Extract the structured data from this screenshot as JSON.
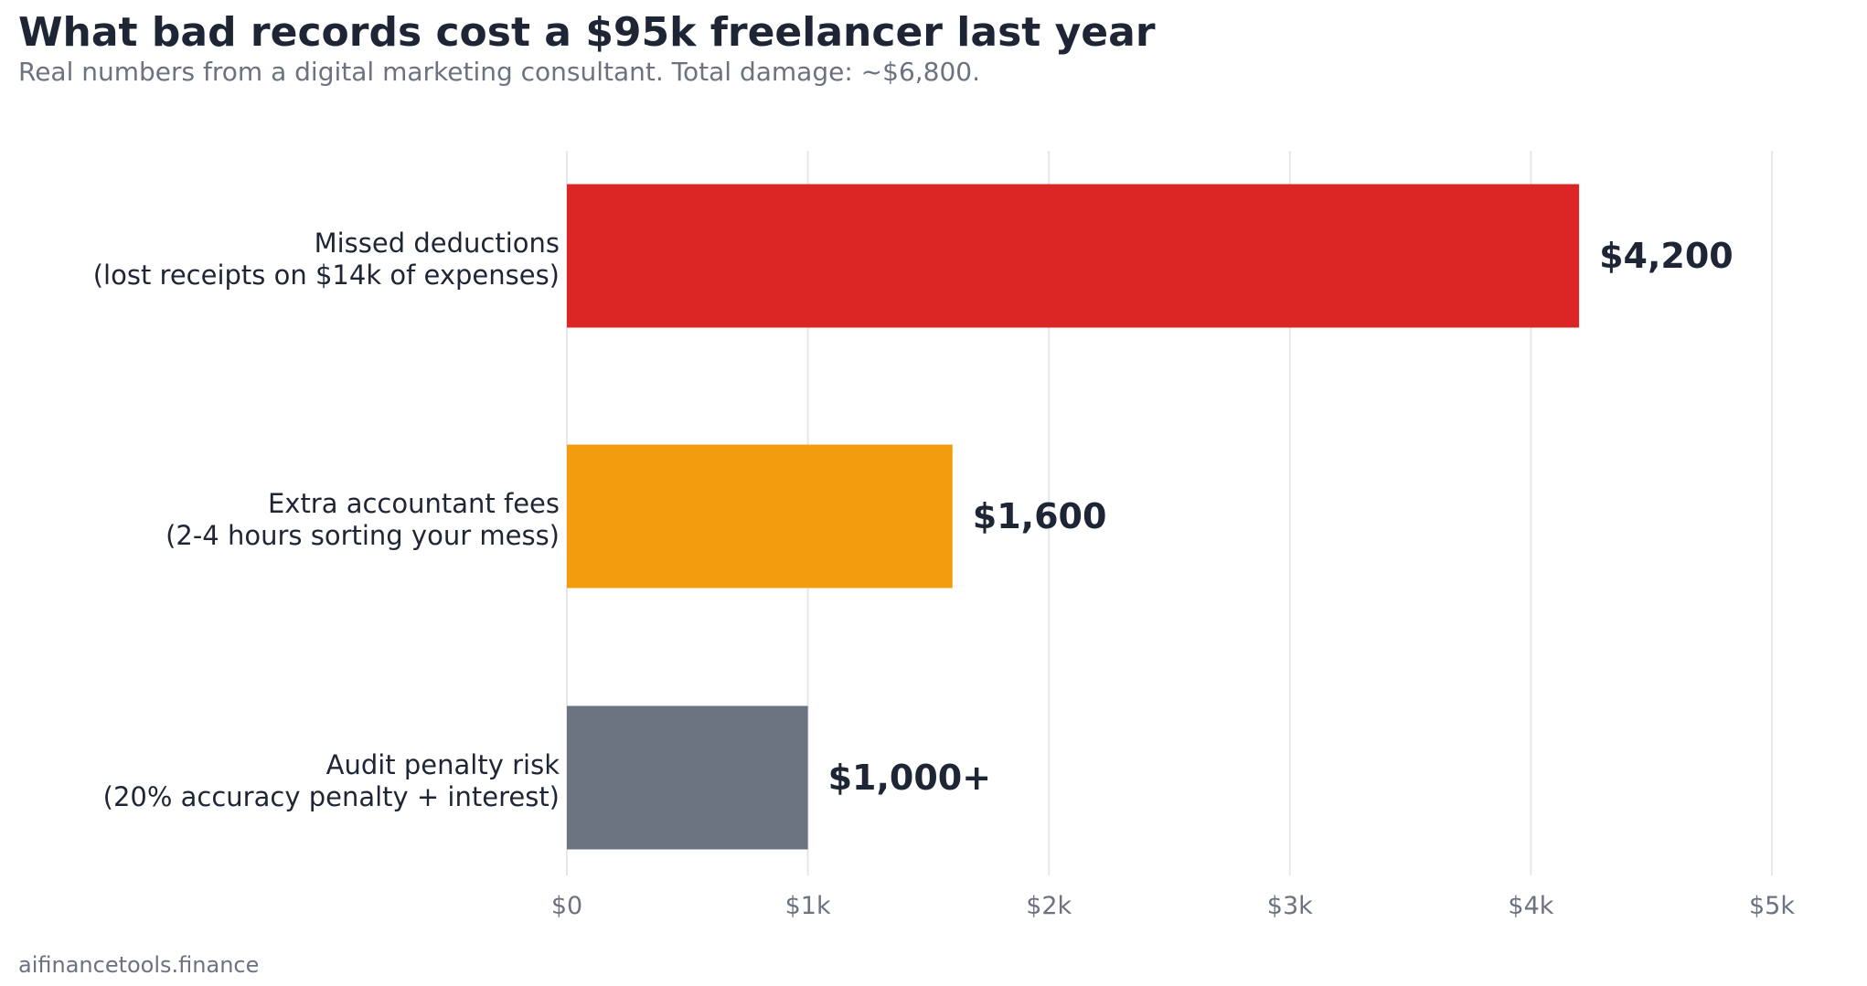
{
  "header": {
    "title": "What bad records cost a $95k freelancer last year",
    "subtitle": "Real numbers from a digital marketing consultant. Total damage: ~$6,800."
  },
  "footer": {
    "source": "aifinancetools.finance"
  },
  "chart_data": {
    "type": "bar",
    "orientation": "horizontal",
    "categories": [
      [
        "Missed deductions",
        "(lost receipts on $14k of expenses)"
      ],
      [
        "Extra accountant fees",
        "(2-4 hours sorting your mess)"
      ],
      [
        "Audit penalty risk",
        "(20% accuracy penalty + interest)"
      ]
    ],
    "values": [
      4200,
      1600,
      1000
    ],
    "value_labels": [
      "$4,200",
      "$1,600",
      "$1,000+"
    ],
    "colors": [
      "#dc2626",
      "#f39c0e",
      "#6b7280"
    ],
    "xlim": [
      0,
      5000
    ],
    "xticks": [
      0,
      1000,
      2000,
      3000,
      4000,
      5000
    ],
    "xtick_labels": [
      "$0",
      "$1k",
      "$2k",
      "$3k",
      "$4k",
      "$5k"
    ],
    "grid": "vertical",
    "xlabel": "",
    "ylabel": ""
  }
}
